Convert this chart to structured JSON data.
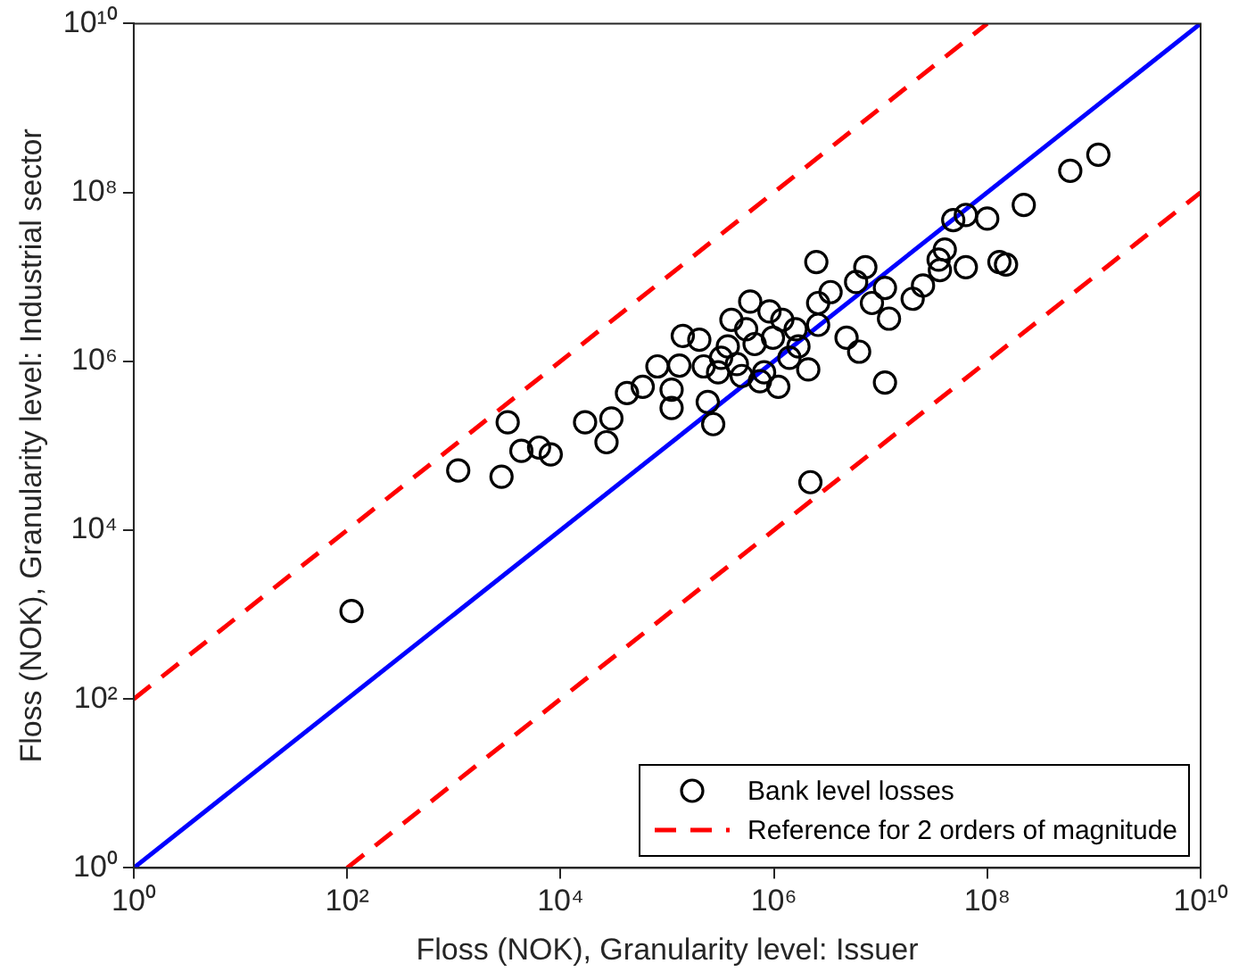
{
  "chart_data": {
    "type": "scatter",
    "xlabel": "Floss (NOK), Granularity level: Issuer",
    "ylabel": "Floss (NOK), Granularity level: Industrial sector",
    "log": "xy",
    "xlim": [
      1,
      10000000000.0
    ],
    "ylim": [
      1,
      10000000000.0
    ],
    "xticks": [
      {
        "value": 1,
        "label": "10⁰"
      },
      {
        "value": 100.0,
        "label": "10²"
      },
      {
        "value": 10000.0,
        "label": "10⁴"
      },
      {
        "value": 1000000.0,
        "label": "10⁶"
      },
      {
        "value": 100000000.0,
        "label": "10⁸"
      },
      {
        "value": 10000000000.0,
        "label": "10¹⁰"
      }
    ],
    "yticks": [
      {
        "value": 1,
        "label": "10⁰"
      },
      {
        "value": 100.0,
        "label": "10²"
      },
      {
        "value": 10000.0,
        "label": "10⁴"
      },
      {
        "value": 1000000.0,
        "label": "10⁶"
      },
      {
        "value": 100000000.0,
        "label": "10⁸"
      },
      {
        "value": 10000000000.0,
        "label": "10¹⁰"
      }
    ],
    "grid": false,
    "legend": "bottom right",
    "series": [
      {
        "name": "Bank level losses",
        "color": "#000000",
        "marker": "circle",
        "x": [
          110.0,
          1100.0,
          2800.0,
          3200.0,
          4300.0,
          6300.0,
          8100.0,
          17000.0,
          30000.0,
          27000.0,
          42000.0,
          59000.0,
          81000.0,
          110000.0,
          110000.0,
          140000.0,
          130000.0,
          200000.0,
          240000.0,
          270000.0,
          600000.0,
          220000.0,
          320000.0,
          2500000.0,
          7200000.0,
          5900000.0,
          8300000.0,
          11000000.0,
          12000000.0,
          3400000.0,
          2600000.0,
          2100000.0,
          4800000.0,
          6300000.0,
          11000000.0,
          2200000.0,
          20000000.0,
          25000000.0,
          35000000.0,
          40000000.0,
          36000000.0,
          63000000.0,
          48000000.0,
          63000000.0,
          100000000.0,
          130000000.0,
          150000000.0,
          220000000.0,
          600000000.0,
          1100000000.0,
          2600000.0,
          370000.0,
          450000.0,
          550000.0,
          660000.0,
          810000.0,
          980000.0,
          1200000.0,
          1400000.0,
          1700000.0,
          740000.0,
          500000.0,
          1100000.0,
          1600000.0,
          910000.0,
          400000.0,
          300000.0
        ],
        "values": [
          1100.0,
          51000.0,
          43000.0,
          190000.0,
          87000.0,
          95000.0,
          79000.0,
          190000.0,
          210000.0,
          110000.0,
          420000.0,
          500000.0,
          870000.0,
          280000.0,
          460000.0,
          2000000.0,
          890000.0,
          1800000.0,
          330000.0,
          180000.0,
          5100000.0,
          870000.0,
          1100000.0,
          15000000.0,
          13000000.0,
          8700000.0,
          4900000.0,
          7400000.0,
          3200000.0,
          6600000.0,
          4900000.0,
          800000.0,
          1900000.0,
          1300000.0,
          560000.0,
          37000.0,
          5500000.0,
          7900000.0,
          16000000.0,
          21000000.0,
          12000000.0,
          13000000.0,
          47000000.0,
          54000000.0,
          49000000.0,
          15000000.0,
          14000000.0,
          71000000.0,
          180000000.0,
          280000000.0,
          2700000.0,
          1500000.0,
          930000.0,
          2400000.0,
          1600000.0,
          740000.0,
          1900000.0,
          3100000.0,
          1100000.0,
          1500000.0,
          580000.0,
          670000.0,
          500000.0,
          2400000.0,
          3900000.0,
          3100000.0,
          740000.0
        ]
      },
      {
        "type": "line",
        "color": "#0000ff",
        "marker": "none",
        "line_style": "solid",
        "x": [
          1,
          10000000000.0
        ],
        "values": [
          1,
          10000000000.0
        ]
      },
      {
        "name": "Reference for 2 orders of magnitude",
        "type": "line",
        "color": "#ff0000",
        "marker": "none",
        "line_style": "dashed",
        "x": [
          1,
          100000000.0
        ],
        "values": [
          100.0,
          10000000000.0
        ]
      },
      {
        "type": "line",
        "color": "#ff0000",
        "marker": "none",
        "line_style": "dashed",
        "x": [
          100.0,
          10000000000.0
        ],
        "values": [
          1,
          100000000.0
        ]
      }
    ]
  }
}
